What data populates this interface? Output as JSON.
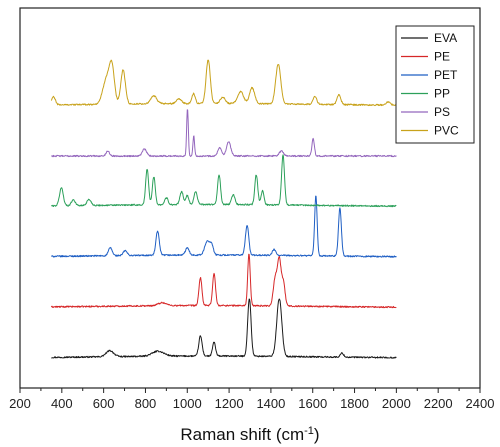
{
  "chart_data": {
    "type": "line",
    "title": "",
    "xlabel": "Raman shift (cm",
    "xlabel_sup": "-1",
    "xlabel_close": ")",
    "ylabel": "",
    "xlim": [
      200,
      2400
    ],
    "x_ticks": [
      200,
      400,
      600,
      800,
      1000,
      1200,
      1400,
      1600,
      1800,
      2000,
      2200,
      2400
    ],
    "y_axis": "no ticks or labels; spectra vertically offset",
    "grid": false,
    "legend_position": "top-right",
    "x_range_of_spectra": [
      350,
      2000
    ],
    "series": [
      {
        "name": "EVA",
        "color": "#1a1a1a",
        "offset": 0,
        "baseline": 2,
        "peaks": [
          [
            630,
            6,
            18
          ],
          [
            860,
            5,
            28
          ],
          [
            1063,
            20,
            8
          ],
          [
            1128,
            14,
            7
          ],
          [
            1297,
            58,
            8
          ],
          [
            1440,
            58,
            12
          ],
          [
            1740,
            4,
            8
          ]
        ]
      },
      {
        "name": "PE",
        "color": "#d62728",
        "offset": 1,
        "baseline": 2,
        "peaks": [
          [
            880,
            3,
            20
          ],
          [
            1063,
            28,
            7
          ],
          [
            1128,
            32,
            7
          ],
          [
            1295,
            52,
            6
          ],
          [
            1420,
            26,
            9
          ],
          [
            1440,
            46,
            9
          ],
          [
            1460,
            22,
            8
          ]
        ]
      },
      {
        "name": "PET",
        "color": "#1f5fc4",
        "offset": 2,
        "baseline": 2,
        "peaks": [
          [
            632,
            8,
            9
          ],
          [
            703,
            5,
            9
          ],
          [
            858,
            24,
            8
          ],
          [
            1000,
            7,
            9
          ],
          [
            1096,
            14,
            12
          ],
          [
            1117,
            9,
            8
          ],
          [
            1286,
            30,
            8
          ],
          [
            1415,
            6,
            8
          ],
          [
            1615,
            60,
            6
          ],
          [
            1730,
            48,
            7
          ]
        ]
      },
      {
        "name": "PP",
        "color": "#2ca05a",
        "offset": 3,
        "baseline": 2,
        "peaks": [
          [
            398,
            18,
            9
          ],
          [
            455,
            6,
            9
          ],
          [
            530,
            6,
            10
          ],
          [
            808,
            36,
            7
          ],
          [
            840,
            28,
            7
          ],
          [
            900,
            7,
            8
          ],
          [
            973,
            13,
            8
          ],
          [
            1000,
            9,
            7
          ],
          [
            1040,
            13,
            8
          ],
          [
            1152,
            30,
            7
          ],
          [
            1220,
            10,
            8
          ],
          [
            1330,
            30,
            7
          ],
          [
            1360,
            14,
            7
          ],
          [
            1458,
            50,
            7
          ]
        ]
      },
      {
        "name": "PS",
        "color": "#9467bd",
        "offset": 4,
        "baseline": 0,
        "peaks": [
          [
            620,
            5,
            8
          ],
          [
            795,
            7,
            10
          ],
          [
            1001,
            48,
            4
          ],
          [
            1031,
            20,
            4
          ],
          [
            1155,
            8,
            9
          ],
          [
            1198,
            14,
            10
          ],
          [
            1450,
            5,
            10
          ],
          [
            1602,
            17,
            6
          ]
        ]
      },
      {
        "name": "PVC",
        "color": "#c8a21b",
        "offset": 5,
        "baseline": 2,
        "peaks": [
          [
            360,
            8,
            9
          ],
          [
            615,
            26,
            18
          ],
          [
            640,
            32,
            12
          ],
          [
            693,
            34,
            11
          ],
          [
            840,
            8,
            14
          ],
          [
            960,
            5,
            12
          ],
          [
            1030,
            10,
            8
          ],
          [
            1100,
            44,
            10
          ],
          [
            1170,
            6,
            12
          ],
          [
            1255,
            12,
            14
          ],
          [
            1310,
            16,
            12
          ],
          [
            1435,
            40,
            12
          ],
          [
            1610,
            8,
            9
          ],
          [
            1725,
            10,
            9
          ],
          [
            1960,
            3,
            10
          ]
        ]
      }
    ]
  },
  "colors": {
    "axis": "#222222",
    "legend_border": "#222222"
  }
}
